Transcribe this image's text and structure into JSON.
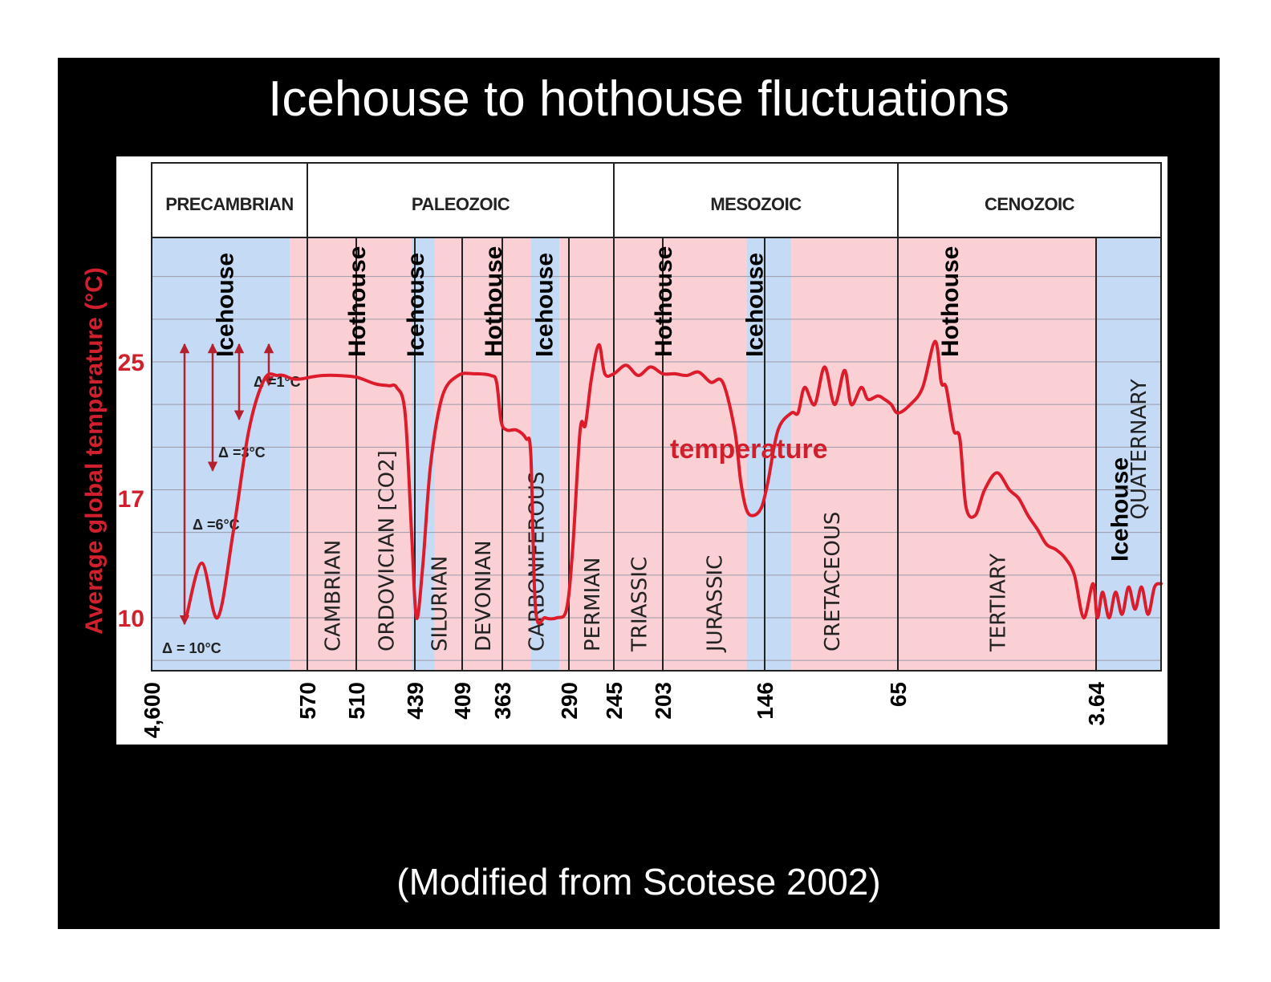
{
  "slide": {
    "title": "Icehouse to hothouse fluctuations",
    "footer": "(Modified from Scotese 2002)"
  },
  "chart_data": {
    "type": "line",
    "ylabel": "Average global temperature (°C)",
    "yticks": [
      "10",
      "17",
      "25"
    ],
    "ylim": [
      7,
      33
    ],
    "xticks": [
      "4,600",
      "570",
      "510",
      "439",
      "409",
      "363",
      "290",
      "245",
      "203",
      "146",
      "65",
      "3.64"
    ],
    "series_label": "temperature",
    "eras": [
      {
        "name": "PRECAMBRIAN",
        "from": 0,
        "to": 2.5
      },
      {
        "name": "PALEOZOIC",
        "from": 2.5,
        "to": 7.5
      },
      {
        "name": "MESOZOIC",
        "from": 7.5,
        "to": 12
      },
      {
        "name": "CENOZOIC",
        "from": 12,
        "to": 16.2
      }
    ],
    "periods": [
      {
        "name": "CAMBRIAN",
        "from": 2.5,
        "to": 3.3
      },
      {
        "name": "ORDOVICIAN [CO2]",
        "from": 3.3,
        "to": 4.2
      },
      {
        "name": "SILURIAN",
        "from": 4.2,
        "to": 4.8
      },
      {
        "name": "DEVONIAN",
        "from": 4.8,
        "to": 5.5
      },
      {
        "name": "CARBONIFEROUS",
        "from": 5.5,
        "to": 6.9
      },
      {
        "name": "PERMIAN",
        "from": 6.9,
        "to": 7.5
      },
      {
        "name": "TRIASSIC",
        "from": 7.5,
        "to": 8.3
      },
      {
        "name": "JURASSIC",
        "from": 8.3,
        "to": 10.0
      },
      {
        "name": "CRETACEOUS",
        "from": 10.0,
        "to": 12.0
      },
      {
        "name": "TERTIARY",
        "from": 12.0,
        "to": 15.2
      },
      {
        "name": "QUATERNARY",
        "from": 15.2,
        "to": 16.2
      }
    ],
    "climate_bands": [
      {
        "state": "Icehouse",
        "from": 0,
        "to": 2.2
      },
      {
        "state": "Hothouse",
        "from": 2.2,
        "to": 4.15
      },
      {
        "state": "Icehouse",
        "from": 4.15,
        "to": 4.45
      },
      {
        "state": "Hothouse",
        "from": 4.45,
        "to": 6.1
      },
      {
        "state": "Icehouse",
        "from": 6.1,
        "to": 6.7
      },
      {
        "state": "Hothouse",
        "from": 6.7,
        "to": 9.7
      },
      {
        "state": "Icehouse",
        "from": 9.7,
        "to": 10.4
      },
      {
        "state": "Hothouse",
        "from": 10.4,
        "to": 15.2
      },
      {
        "state": "Icehouse",
        "from": 15.2,
        "to": 16.2
      }
    ],
    "regime_labels": [
      {
        "text": "Icehouse",
        "at": 1.16
      },
      {
        "text": "Hothouse",
        "at": 3.3
      },
      {
        "text": "Icehouse",
        "at": 4.2
      },
      {
        "text": "Hothouse",
        "at": 5.33
      },
      {
        "text": "Icehouse",
        "at": 6.37
      },
      {
        "text": "Hothouse",
        "at": 8.3
      },
      {
        "text": "Icehouse",
        "at": 9.82
      },
      {
        "text": "Hothouse",
        "at": 12.83
      },
      {
        "text": "Icehouse",
        "at": 15.55
      }
    ],
    "boundaries": [
      2.5,
      3.3,
      4.2,
      4.8,
      5.5,
      6.9,
      7.5,
      8.3,
      10.0,
      12.0,
      15.2
    ],
    "deltas": [
      {
        "label": "Δ =1°C",
        "span": [
          24.0,
          25.0
        ]
      },
      {
        "label": "Δ =3°C",
        "span": [
          22.0,
          25.0
        ]
      },
      {
        "label": "Δ =6°C",
        "span": [
          19.0,
          25.0
        ]
      },
      {
        "label": "Δ = 10°C",
        "span": [
          10.0,
          25.0
        ]
      }
    ],
    "x": [
      0.55,
      0.8,
      1.05,
      1.3,
      1.55,
      1.8,
      2.0,
      2.1,
      2.25,
      2.4,
      2.55,
      2.75,
      3.0,
      3.3,
      3.6,
      3.8,
      3.92,
      4.05,
      4.15,
      4.22,
      4.3,
      4.4,
      4.55,
      4.75,
      5.0,
      5.3,
      5.4,
      5.48,
      5.6,
      5.8,
      6.0,
      6.1,
      6.2,
      6.4,
      6.65,
      6.85,
      6.95,
      7.05,
      7.12,
      7.2,
      7.3,
      7.38,
      7.5,
      7.7,
      7.9,
      8.1,
      8.3,
      8.5,
      8.7,
      8.9,
      9.1,
      9.3,
      9.5,
      9.6,
      9.7,
      9.82,
      9.95,
      10.05,
      10.2,
      10.4,
      10.5,
      10.6,
      10.75,
      10.9,
      11.05,
      11.2,
      11.3,
      11.45,
      11.55,
      11.7,
      11.8,
      11.9,
      12.0,
      12.2,
      12.4,
      12.6,
      12.7,
      12.78,
      12.9,
      13.0,
      13.1,
      13.25,
      13.4,
      13.6,
      13.8,
      13.95,
      14.1,
      14.25,
      14.4,
      14.55,
      14.7,
      14.85,
      15.0,
      15.15,
      15.22,
      15.3,
      15.4,
      15.5,
      15.6,
      15.7,
      15.8,
      15.9,
      16.0,
      16.1,
      16.2
    ],
    "y": [
      10.0,
      13.2,
      10.0,
      15.0,
      21.0,
      24.0,
      24.2,
      24.2,
      24.0,
      24.0,
      24.1,
      24.2,
      24.2,
      24.1,
      23.7,
      23.6,
      23.5,
      22.0,
      15.0,
      10.0,
      13.0,
      19.0,
      23.0,
      24.2,
      24.3,
      24.2,
      23.8,
      21.5,
      21.0,
      21.0,
      20.5,
      19.5,
      10.5,
      10.0,
      10.0,
      10.5,
      14.0,
      21.0,
      21.3,
      24.0,
      26.0,
      24.3,
      24.3,
      24.8,
      24.2,
      24.7,
      24.3,
      24.3,
      24.2,
      24.4,
      23.8,
      23.8,
      21.0,
      18.0,
      16.3,
      16.0,
      16.5,
      18.0,
      21.0,
      22.0,
      22.0,
      23.5,
      22.5,
      24.7,
      22.5,
      24.5,
      22.5,
      23.5,
      22.8,
      23.0,
      22.8,
      22.5,
      22.0,
      22.5,
      23.5,
      26.2,
      23.8,
      23.5,
      21.0,
      20.5,
      16.5,
      16.0,
      17.5,
      18.5,
      17.5,
      17.0,
      16.0,
      15.2,
      14.3,
      14.0,
      13.5,
      12.5,
      10.0,
      12.0,
      10.0,
      11.5,
      10.0,
      11.5,
      10.2,
      11.8,
      10.5,
      11.8,
      10.2,
      11.8,
      12.0
    ]
  }
}
